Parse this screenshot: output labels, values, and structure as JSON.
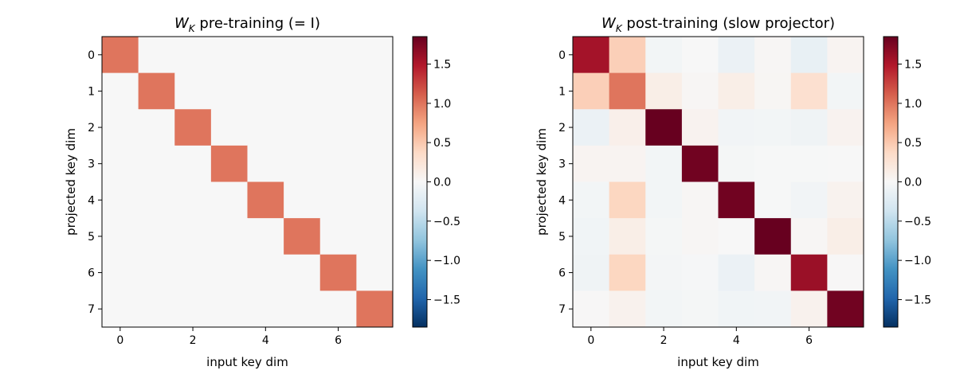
{
  "chart_data": [
    {
      "type": "heatmap",
      "title_math": "W",
      "title_sub": "K",
      "title_rest": " pre-training (= I)",
      "xlabel": "input key dim",
      "ylabel": "projected key dim",
      "x_ticks": [
        "0",
        "2",
        "4",
        "6"
      ],
      "y_ticks": [
        "0",
        "1",
        "2",
        "3",
        "4",
        "5",
        "6",
        "7"
      ],
      "rows": 8,
      "cols": 8,
      "values": [
        [
          1,
          0,
          0,
          0,
          0,
          0,
          0,
          0
        ],
        [
          0,
          1,
          0,
          0,
          0,
          0,
          0,
          0
        ],
        [
          0,
          0,
          1,
          0,
          0,
          0,
          0,
          0
        ],
        [
          0,
          0,
          0,
          1,
          0,
          0,
          0,
          0
        ],
        [
          0,
          0,
          0,
          0,
          1,
          0,
          0,
          0
        ],
        [
          0,
          0,
          0,
          0,
          0,
          1,
          0,
          0
        ],
        [
          0,
          0,
          0,
          0,
          0,
          0,
          1,
          0
        ],
        [
          0,
          0,
          0,
          0,
          0,
          0,
          0,
          1
        ]
      ],
      "colormap": "RdBu_r",
      "vlim": [
        -1.85,
        1.85
      ],
      "colorbar_ticks": [
        "1.5",
        "1.0",
        "0.5",
        "0.0",
        "−0.5",
        "−1.0",
        "−1.5"
      ]
    },
    {
      "type": "heatmap",
      "title_math": "W",
      "title_sub": "K",
      "title_rest": " post-training (slow projector)",
      "xlabel": "input key dim",
      "ylabel": "projected key dim",
      "x_ticks": [
        "0",
        "2",
        "4",
        "6"
      ],
      "y_ticks": [
        "0",
        "1",
        "2",
        "3",
        "4",
        "5",
        "6",
        "7"
      ],
      "rows": 8,
      "cols": 8,
      "values": [
        [
          1.55,
          0.45,
          -0.05,
          0.0,
          -0.12,
          0.02,
          -0.15,
          0.05
        ],
        [
          0.45,
          1.0,
          0.12,
          0.02,
          0.12,
          0.03,
          0.3,
          -0.05
        ],
        [
          -0.12,
          0.1,
          1.85,
          0.06,
          -0.06,
          -0.05,
          -0.08,
          0.06
        ],
        [
          0.05,
          0.05,
          -0.05,
          1.8,
          -0.03,
          -0.01,
          -0.01,
          0.0
        ],
        [
          -0.05,
          0.4,
          -0.05,
          0.02,
          1.8,
          -0.01,
          -0.06,
          0.07
        ],
        [
          -0.07,
          0.12,
          -0.03,
          0.02,
          0.0,
          1.85,
          0.02,
          0.12
        ],
        [
          -0.08,
          0.4,
          -0.04,
          -0.02,
          -0.12,
          0.02,
          1.6,
          0.01
        ],
        [
          0.01,
          0.08,
          -0.05,
          -0.03,
          -0.07,
          -0.06,
          0.08,
          1.8
        ]
      ],
      "colormap": "RdBu_r",
      "vlim": [
        -1.85,
        1.85
      ],
      "colorbar_ticks": [
        "1.5",
        "1.0",
        "0.5",
        "0.0",
        "−0.5",
        "−1.0",
        "−1.5"
      ]
    }
  ]
}
